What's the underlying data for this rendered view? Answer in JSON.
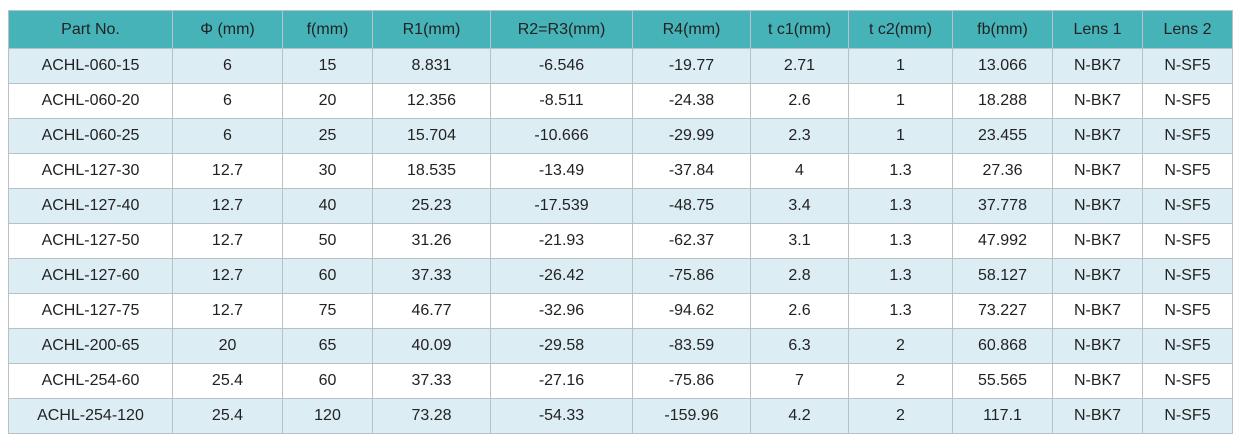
{
  "table": {
    "header": [
      "Part No.",
      "Φ (mm)",
      "f(mm)",
      "R1(mm)",
      "R2=R3(mm)",
      "R4(mm)",
      "t c1(mm)",
      "t c2(mm)",
      "fb(mm)",
      "Lens 1",
      "Lens 2"
    ],
    "rows": [
      [
        "ACHL-060-15",
        "6",
        "15",
        "8.831",
        "-6.546",
        "-19.77",
        "2.71",
        "1",
        "13.066",
        "N-BK7",
        "N-SF5"
      ],
      [
        "ACHL-060-20",
        "6",
        "20",
        "12.356",
        "-8.511",
        "-24.38",
        "2.6",
        "1",
        "18.288",
        "N-BK7",
        "N-SF5"
      ],
      [
        "ACHL-060-25",
        "6",
        "25",
        "15.704",
        "-10.666",
        "-29.99",
        "2.3",
        "1",
        "23.455",
        "N-BK7",
        "N-SF5"
      ],
      [
        "ACHL-127-30",
        "12.7",
        "30",
        "18.535",
        "-13.49",
        "-37.84",
        "4",
        "1.3",
        "27.36",
        "N-BK7",
        "N-SF5"
      ],
      [
        "ACHL-127-40",
        "12.7",
        "40",
        "25.23",
        "-17.539",
        "-48.75",
        "3.4",
        "1.3",
        "37.778",
        "N-BK7",
        "N-SF5"
      ],
      [
        "ACHL-127-50",
        "12.7",
        "50",
        "31.26",
        "-21.93",
        "-62.37",
        "3.1",
        "1.3",
        "47.992",
        "N-BK7",
        "N-SF5"
      ],
      [
        "ACHL-127-60",
        "12.7",
        "60",
        "37.33",
        "-26.42",
        "-75.86",
        "2.8",
        "1.3",
        "58.127",
        "N-BK7",
        "N-SF5"
      ],
      [
        "ACHL-127-75",
        "12.7",
        "75",
        "46.77",
        "-32.96",
        "-94.62",
        "2.6",
        "1.3",
        "73.227",
        "N-BK7",
        "N-SF5"
      ],
      [
        "ACHL-200-65",
        "20",
        "65",
        "40.09",
        "-29.58",
        "-83.59",
        "6.3",
        "2",
        "60.868",
        "N-BK7",
        "N-SF5"
      ],
      [
        "ACHL-254-60",
        "25.4",
        "60",
        "37.33",
        "-27.16",
        "-75.86",
        "7",
        "2",
        "55.565",
        "N-BK7",
        "N-SF5"
      ],
      [
        "ACHL-254-120",
        "25.4",
        "120",
        "73.28",
        "-54.33",
        "-159.96",
        "4.2",
        "2",
        "117.1",
        "N-BK7",
        "N-SF5"
      ]
    ]
  }
}
